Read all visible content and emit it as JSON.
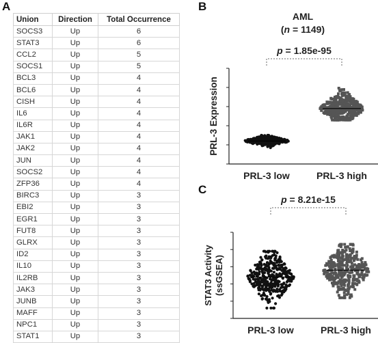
{
  "panels": {
    "a": "A",
    "b": "B",
    "c": "C"
  },
  "table": {
    "headers": [
      "Union",
      "Direction",
      "Total Occurrence"
    ],
    "rows": [
      [
        "SOCS3",
        "Up",
        "6"
      ],
      [
        "STAT3",
        "Up",
        "6"
      ],
      [
        "CCL2",
        "Up",
        "5"
      ],
      [
        "SOCS1",
        "Up",
        "5"
      ],
      [
        "BCL3",
        "Up",
        "4"
      ],
      [
        "BCL6",
        "Up",
        "4"
      ],
      [
        "CISH",
        "Up",
        "4"
      ],
      [
        "IL6",
        "Up",
        "4"
      ],
      [
        "IL6R",
        "Up",
        "4"
      ],
      [
        "JAK1",
        "Up",
        "4"
      ],
      [
        "JAK2",
        "Up",
        "4"
      ],
      [
        "JUN",
        "Up",
        "4"
      ],
      [
        "SOCS2",
        "Up",
        "4"
      ],
      [
        "ZFP36",
        "Up",
        "4"
      ],
      [
        "BIRC3",
        "Up",
        "3"
      ],
      [
        "EBI2",
        "Up",
        "3"
      ],
      [
        "EGR1",
        "Up",
        "3"
      ],
      [
        "FUT8",
        "Up",
        "3"
      ],
      [
        "GLRX",
        "Up",
        "3"
      ],
      [
        "ID2",
        "Up",
        "3"
      ],
      [
        "IL10",
        "Up",
        "3"
      ],
      [
        "IL2RB",
        "Up",
        "3"
      ],
      [
        "JAK3",
        "Up",
        "3"
      ],
      [
        "JUNB",
        "Up",
        "3"
      ],
      [
        "MAFF",
        "Up",
        "3"
      ],
      [
        "NPC1",
        "Up",
        "3"
      ],
      [
        "STAT1",
        "Up",
        "3"
      ]
    ]
  },
  "chart_data": [
    {
      "type": "scatter",
      "title": "AML",
      "subtitle_n": "n",
      "subtitle_value": " = 1149)",
      "pvalue_p": "p",
      "pvalue_value": " = 1.85e-95",
      "ylabel": "PRL-3 Expression",
      "categories": [
        "PRL-3 low",
        "PRL-3 high"
      ],
      "ylim": [
        0,
        5
      ],
      "series": [
        {
          "median": 1.2,
          "spread": 0.28,
          "min": 0.85,
          "max": 1.5,
          "color": "#111111"
        },
        {
          "median": 2.9,
          "spread": 0.85,
          "min": 2.3,
          "max": 4.5,
          "color": "#555555"
        }
      ]
    },
    {
      "type": "scatter",
      "pvalue_p": "p",
      "pvalue_value": " = 8.21e-15",
      "ylabel_line1": "STAT3 Activity",
      "ylabel_line2": "(ssGSEA)",
      "categories": [
        "PRL-3 low",
        "PRL-3 high"
      ],
      "ylim": [
        0,
        5
      ],
      "series": [
        {
          "median": 2.4,
          "spread": 1.6,
          "min": 0.6,
          "max": 3.9,
          "color": "#111111"
        },
        {
          "median": 2.8,
          "spread": 1.6,
          "min": 1.2,
          "max": 4.3,
          "color": "#555555"
        }
      ]
    }
  ]
}
